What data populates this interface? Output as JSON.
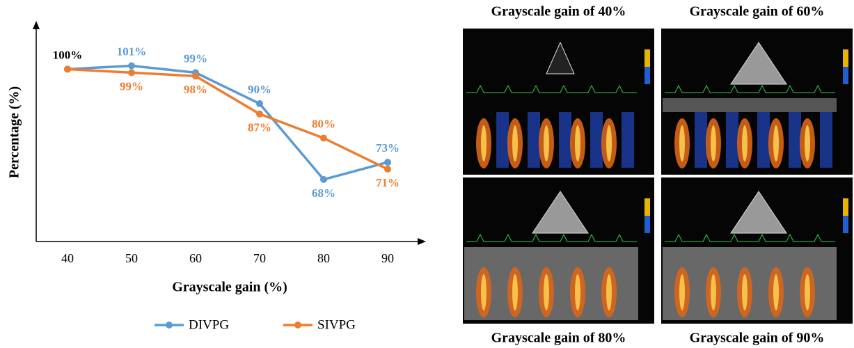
{
  "chart_data": {
    "type": "line",
    "x_label": "Grayscale gain (%)",
    "y_label": "Percentage (%)",
    "categories": [
      "40",
      "50",
      "60",
      "70",
      "80",
      "90"
    ],
    "ylim": [
      50,
      112
    ],
    "series": [
      {
        "name": "DIVPG",
        "color": "#5b9bd5",
        "values": [
          100,
          101,
          99,
          90,
          68,
          73
        ],
        "value_labels": [
          "100%",
          "101%",
          "99%",
          "90%",
          "68%",
          "73%"
        ]
      },
      {
        "name": "SIVPG",
        "color": "#ed7d31",
        "values": [
          100,
          99,
          98,
          87,
          80,
          71
        ],
        "value_labels": [
          null,
          "99%",
          "98%",
          "87%",
          "80%",
          "71%"
        ]
      }
    ]
  },
  "images": [
    "Grayscale gain of 40%",
    "Grayscale gain of 60%",
    "Grayscale gain of 80%",
    "Grayscale gain of 90%"
  ]
}
